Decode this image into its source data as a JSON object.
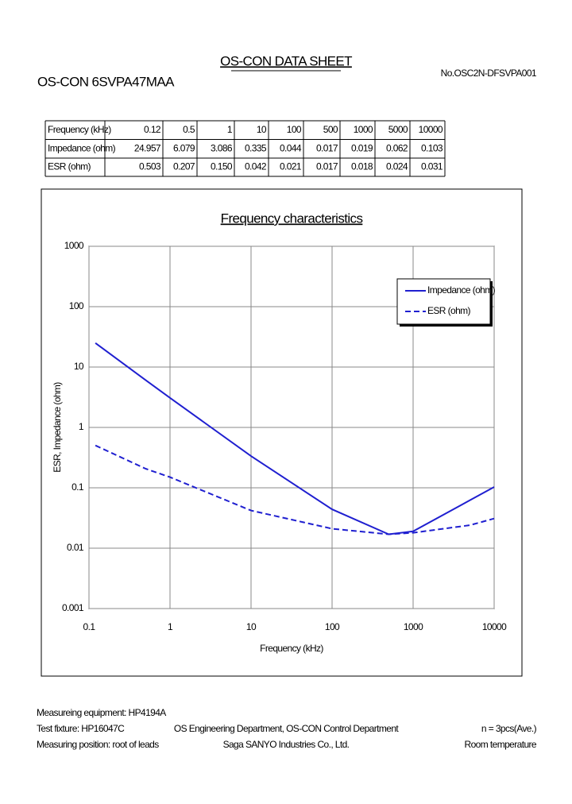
{
  "header": {
    "title": "OS-CON DATA SHEET",
    "part": "OS-CON 6SVPA47MAA",
    "doc_no": "No.OSC2N-DFSVPA001"
  },
  "table": {
    "rows": [
      [
        "Frequency (kHz)",
        "0.12",
        "0.5",
        "1",
        "10",
        "100",
        "500",
        "1000",
        "5000",
        "10000"
      ],
      [
        "Impedance (ohm)",
        "24.957",
        "6.079",
        "3.086",
        "0.335",
        "0.044",
        "0.017",
        "0.019",
        "0.062",
        "0.103"
      ],
      [
        "ESR (ohm)",
        "0.503",
        "0.207",
        "0.150",
        "0.042",
        "0.021",
        "0.017",
        "0.018",
        "0.024",
        "0.031"
      ]
    ]
  },
  "chart_data": {
    "type": "line",
    "title": "Frequency characteristics",
    "x_label": "Frequency (kHz)",
    "y_label": "ESR, Impedance (ohm)",
    "log_x": true,
    "log_y": true,
    "grid": true,
    "legend": "upper right",
    "x": [
      0.12,
      0.5,
      1,
      10,
      100,
      500,
      1000,
      5000,
      10000
    ],
    "series": [
      {
        "name": "Impedance (ohm)",
        "color": "#1f1fd0",
        "line_style": "solid",
        "values": [
          24.957,
          6.079,
          3.086,
          0.335,
          0.044,
          0.017,
          0.019,
          0.062,
          0.103
        ]
      },
      {
        "name": "ESR (ohm)",
        "color": "#1f1fd0",
        "line_style": "dashed",
        "values": [
          0.503,
          0.207,
          0.15,
          0.042,
          0.021,
          0.017,
          0.018,
          0.024,
          0.031
        ]
      }
    ],
    "xlim": [
      0.1,
      10000
    ],
    "xticks": [
      0.1,
      1,
      10,
      100,
      1000,
      10000
    ],
    "ylim": [
      0.001,
      1000
    ],
    "yticks": [
      0.001,
      0.01,
      0.1,
      1,
      10,
      100,
      1000
    ]
  },
  "footer": {
    "equipment": "Measureing equipment: HP4194A",
    "fixture": "Test fixture: HP16047C",
    "position": "Measuring position: root of leads",
    "department": "OS Engineering Department, OS-CON Control Department",
    "company": "Saga SANYO Industries Co., Ltd.",
    "samples": "n = 3pcs(Ave.)",
    "temperature": "Room temperature"
  }
}
